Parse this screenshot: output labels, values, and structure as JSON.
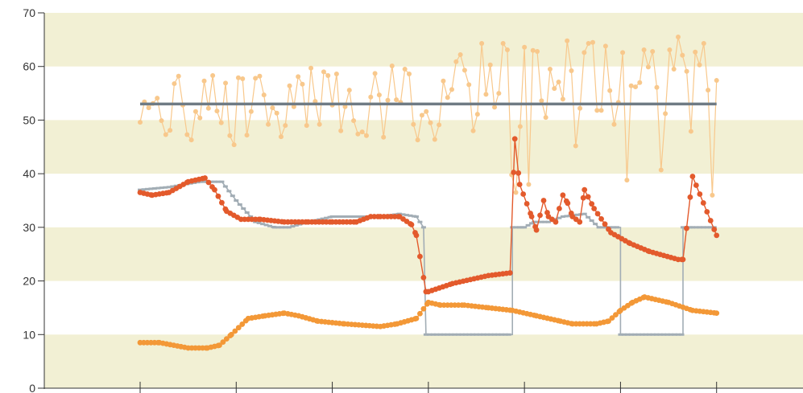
{
  "chart_data": {
    "type": "line",
    "title": "",
    "xlabel": "",
    "ylabel": "",
    "ylim": [
      0,
      70
    ],
    "yticks": [
      0,
      10,
      20,
      30,
      40,
      50,
      60,
      70
    ],
    "xlim": [
      0,
      280
    ],
    "xticks": [
      0,
      40,
      80,
      120,
      160,
      200,
      240,
      280
    ],
    "xticks_labeled": false,
    "grid": "alternating horizontal bands every 10 units",
    "band_color": "#f2f0d4",
    "series": [
      {
        "color": "#f8c88c",
        "style": "thin line with markers",
        "x_start": 0,
        "x_end": 240,
        "values": [
          49.6,
          53.4,
          52.3,
          53.1,
          54.1,
          49.9,
          47.3,
          48.1,
          56.8,
          58.2,
          52.8,
          47.3,
          46.3,
          51.6,
          50.4,
          57.3,
          52.2,
          58.3,
          51.7,
          49.5,
          56.9,
          47.1,
          45.4,
          57.9,
          57.7,
          47.2,
          51.6,
          57.8,
          58.2,
          54.7,
          49.2,
          52.3,
          51.3,
          46.9,
          49.0,
          56.4,
          52.5,
          58.1,
          56.7,
          49.0,
          59.7,
          53.5,
          49.2,
          59.0,
          58.3,
          52.8,
          58.6,
          48.0,
          52.5,
          55.6,
          49.9,
          47.4,
          47.8,
          47.1,
          54.3,
          58.7,
          54.7,
          46.8,
          53.7,
          60.1,
          53.8,
          53.3,
          59.5,
          58.6,
          49.2,
          46.3,
          50.9,
          51.6,
          49.5,
          46.4,
          49.1,
          57.3,
          54.2,
          55.7,
          60.9,
          62.2,
          59.3,
          56.6,
          48.0,
          51.1,
          64.3,
          54.8,
          60.3,
          52.4,
          55.0,
          64.3,
          63.1,
          39.8,
          36.5,
          48.8,
          63.6,
          38.0,
          63.0,
          62.8,
          53.6,
          50.5,
          59.5,
          55.9,
          57.1,
          53.9,
          64.8,
          59.2,
          45.2,
          52.2,
          62.6,
          64.3,
          64.5,
          51.8,
          51.8,
          63.8,
          55.5,
          49.2,
          53.3,
          62.6,
          38.8,
          56.4,
          56.2,
          57.0,
          63.1,
          59.9,
          62.8,
          56.1,
          40.7,
          51.2,
          63.1,
          59.5,
          65.5,
          62.1,
          59.1,
          47.9,
          62.7,
          60.3,
          64.3,
          55.6,
          36.0,
          57.4
        ]
      },
      {
        "color": "#6f7b84",
        "style": "thick flat reference line",
        "x": [
          0,
          240
        ],
        "values": [
          53,
          53
        ]
      },
      {
        "color": "#a2adb5",
        "style": "stepped line with bar markers",
        "x": [
          0,
          12,
          25,
          34,
          40,
          48,
          56,
          62,
          70,
          80,
          92,
          100,
          108,
          115,
          118,
          119,
          155,
          155,
          159,
          160,
          164,
          170,
          176,
          185,
          191,
          200,
          200,
          226,
          226,
          230,
          240
        ],
        "values": [
          37,
          37.5,
          38.5,
          38.5,
          35,
          31,
          30,
          30,
          31,
          32,
          32,
          32,
          32.5,
          32,
          30,
          10,
          10,
          30,
          30,
          30,
          31,
          31,
          32,
          32.5,
          30,
          30,
          10,
          10,
          30,
          30,
          30
        ]
      },
      {
        "color": "#e35a2c",
        "style": "line with filled markers",
        "x": [
          0,
          5,
          12,
          20,
          27,
          31,
          36,
          42,
          50,
          60,
          70,
          80,
          90,
          96,
          100,
          108,
          113,
          115,
          119,
          120,
          130,
          145,
          154,
          156,
          158,
          163,
          165,
          168,
          170,
          173,
          176,
          178,
          180,
          183,
          185,
          189,
          196,
          204,
          212,
          224,
          226,
          230,
          240
        ],
        "values": [
          36.5,
          36,
          36.5,
          38.5,
          39.2,
          37,
          33,
          31.5,
          31.5,
          31,
          31,
          31,
          31,
          32,
          32,
          32,
          30.5,
          28.5,
          18,
          18,
          19.5,
          21,
          21.5,
          46.5,
          38,
          32,
          29.5,
          35,
          32,
          31,
          36,
          34.5,
          32,
          31,
          37,
          33.5,
          29,
          27,
          25.5,
          24,
          24,
          39.5,
          28.5
        ]
      },
      {
        "color": "#f39837",
        "style": "line with filled markers",
        "x": [
          0,
          8,
          14,
          20,
          28,
          33,
          38,
          45,
          52,
          60,
          66,
          74,
          85,
          100,
          107,
          115,
          120,
          125,
          135,
          145,
          155,
          165,
          175,
          180,
          190,
          195,
          200,
          205,
          210,
          220,
          230,
          240
        ],
        "values": [
          8.5,
          8.5,
          8,
          7.5,
          7.5,
          8,
          10,
          13,
          13.5,
          14,
          13.5,
          12.5,
          12,
          11.5,
          12,
          13,
          16,
          15.5,
          15.5,
          15,
          14.5,
          13.5,
          12.5,
          12,
          12,
          12.5,
          14.5,
          16,
          17,
          16,
          14.5,
          14
        ]
      }
    ]
  }
}
